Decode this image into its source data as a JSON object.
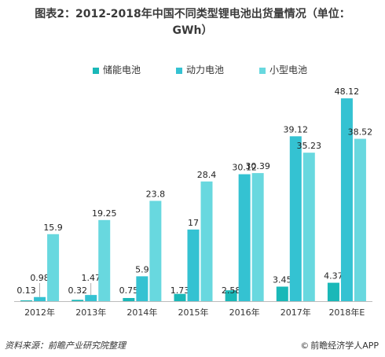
{
  "title_line1": "图表2：2012-2018年中国不同类型锂电池出货量情况（单位：",
  "title_line2": "GWh）",
  "source_text": "资料来源：前瞻产业研究院整理",
  "footer_brand": "前瞻经济学人APP",
  "footer_copyright_symbol": "©",
  "colors": {
    "series": [
      "#1ab8b8",
      "#34c2d2",
      "#68d8df"
    ],
    "axis": "#bbbbbb",
    "label": "#222222"
  },
  "chart_data": {
    "type": "bar",
    "categories": [
      "2012年",
      "2013年",
      "2014年",
      "2015年",
      "2016年",
      "2017年",
      "2018年E"
    ],
    "series": [
      {
        "name": "储能电池",
        "values": [
          0.13,
          0.32,
          0.75,
          1.73,
          2.58,
          3.45,
          4.37
        ]
      },
      {
        "name": "动力电池",
        "values": [
          0.98,
          1.47,
          5.9,
          17,
          30.12,
          39.12,
          48.12
        ]
      },
      {
        "name": "小型电池",
        "values": [
          15.9,
          19.25,
          23.8,
          28.4,
          30.39,
          35.23,
          38.52
        ]
      }
    ],
    "data_labels": [
      [
        "0.13",
        "0.32",
        "0.75",
        "1.73",
        "2.58",
        "3.45",
        "4.37"
      ],
      [
        "0.98",
        "1.47",
        "5.9",
        "17",
        "30.12",
        "39.12",
        "48.12"
      ],
      [
        "15.9",
        "19.25",
        "23.8",
        "28.4",
        "30.39",
        "35.23",
        "38.52"
      ]
    ],
    "ylim": [
      0,
      50
    ],
    "grid": false,
    "legend": "top-center"
  }
}
